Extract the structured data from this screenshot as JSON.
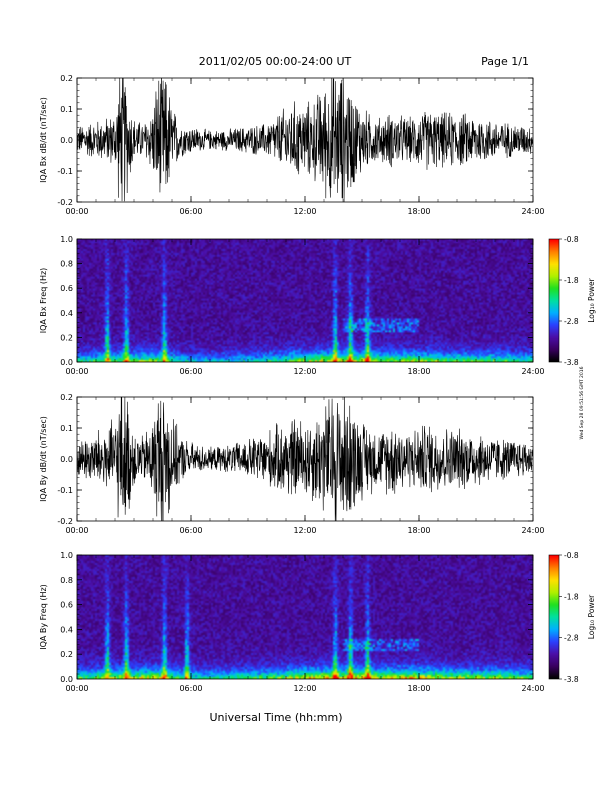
{
  "header": {
    "title": "2011/02/05  00:00-24:00 UT",
    "page": "Page 1/1"
  },
  "footer": {
    "xlabel": "Universal Time (hh:mm)"
  },
  "side_note": "Wed Sep 28 09:51:56 GMT 2016",
  "colors": {
    "trace": "#000000",
    "colormap": [
      "#000000",
      "#3a0060",
      "#4b0fa8",
      "#2a40ff",
      "#00b0ff",
      "#00e0a0",
      "#20e020",
      "#b0f000",
      "#ffe000",
      "#ff8000",
      "#ff0000"
    ]
  },
  "chart_data": [
    {
      "type": "line",
      "title": "",
      "ylabel": "IQA Bx dB/dt (nT/sec)",
      "xlabel": "",
      "x_range_hours": [
        0,
        24
      ],
      "x_tick_labels": [
        "00:00",
        "06:00",
        "12:00",
        "18:00",
        "24:00"
      ],
      "ylim": [
        -0.2,
        0.2
      ],
      "y_tick_labels": [
        "0.2",
        "0.1",
        "0.0",
        "-0.1",
        "-0.2"
      ],
      "y_ticks": [
        0.2,
        0.1,
        0.0,
        -0.1,
        -0.2
      ],
      "envelope": {
        "hours": [
          0,
          0.5,
          1,
          1.5,
          2,
          2.25,
          2.5,
          2.75,
          3,
          3.5,
          4,
          4.25,
          4.5,
          4.75,
          5,
          5.5,
          6,
          6.5,
          7,
          8,
          9,
          10,
          10.5,
          11,
          11.5,
          12,
          12.5,
          13,
          13.5,
          14,
          14.5,
          15,
          15.5,
          16,
          16.5,
          17,
          17.5,
          18,
          18.5,
          19,
          20,
          21,
          22,
          23,
          24
        ],
        "amplitude": [
          0.05,
          0.06,
          0.07,
          0.08,
          0.1,
          0.25,
          0.25,
          0.15,
          0.08,
          0.06,
          0.12,
          0.25,
          0.25,
          0.22,
          0.12,
          0.06,
          0.05,
          0.04,
          0.035,
          0.04,
          0.05,
          0.06,
          0.09,
          0.12,
          0.14,
          0.13,
          0.15,
          0.2,
          0.25,
          0.25,
          0.18,
          0.12,
          0.09,
          0.08,
          0.1,
          0.09,
          0.08,
          0.1,
          0.11,
          0.1,
          0.1,
          0.09,
          0.07,
          0.06,
          0.05
        ]
      }
    },
    {
      "type": "heatmap",
      "title": "",
      "ylabel": "IQA Bx Freq (Hz)",
      "xlabel": "",
      "x_range_hours": [
        0,
        24
      ],
      "x_tick_labels": [
        "00:00",
        "06:00",
        "12:00",
        "18:00",
        "24:00"
      ],
      "ylim": [
        0.0,
        1.0
      ],
      "y_tick_labels": [
        "1.0",
        "0.8",
        "0.6",
        "0.4",
        "0.2",
        "0.0"
      ],
      "y_ticks": [
        1.0,
        0.8,
        0.6,
        0.4,
        0.2,
        0.0
      ],
      "colorbar": {
        "label": "Log₁₀ Power",
        "range": [
          -3.8,
          -0.8
        ],
        "tick_labels": [
          "-0.8",
          "-1.8",
          "-2.8",
          "-3.8"
        ],
        "ticks": [
          -0.8,
          -1.8,
          -2.8,
          -3.8
        ]
      },
      "features": {
        "vertical_bursts_hours": [
          1.6,
          2.6,
          4.6,
          13.6,
          14.4,
          15.3
        ],
        "pc1_band": {
          "start_hour": 14.0,
          "end_hour": 18.0,
          "freq_hz": [
            0.25,
            0.35
          ]
        },
        "low_freq_intensity_hours": [
          0,
          2,
          4,
          6,
          8,
          10,
          12,
          14,
          16,
          18,
          20,
          22,
          24
        ],
        "low_freq_intensity": [
          0.4,
          0.5,
          0.6,
          0.3,
          0.3,
          0.4,
          0.6,
          0.7,
          0.6,
          0.6,
          0.5,
          0.5,
          0.4
        ]
      }
    },
    {
      "type": "line",
      "title": "",
      "ylabel": "IQA By dB/dt (nT/sec)",
      "xlabel": "",
      "x_range_hours": [
        0,
        24
      ],
      "x_tick_labels": [
        "00:00",
        "06:00",
        "12:00",
        "18:00",
        "24:00"
      ],
      "ylim": [
        -0.2,
        0.2
      ],
      "y_tick_labels": [
        "0.2",
        "0.1",
        "0.0",
        "-0.1",
        "-0.2"
      ],
      "y_ticks": [
        0.2,
        0.1,
        0.0,
        -0.1,
        -0.2
      ],
      "envelope": {
        "hours": [
          0,
          0.5,
          1,
          1.5,
          2,
          2.25,
          2.5,
          2.75,
          3,
          3.5,
          4,
          4.25,
          4.5,
          4.75,
          5,
          5.5,
          6,
          6.5,
          7,
          8,
          9,
          10,
          10.5,
          11,
          11.5,
          12,
          12.5,
          13,
          13.5,
          14,
          14.5,
          15,
          15.5,
          16,
          16.5,
          17,
          17.5,
          18,
          18.5,
          19,
          20,
          21,
          22,
          23,
          24
        ],
        "amplitude": [
          0.06,
          0.08,
          0.1,
          0.12,
          0.14,
          0.25,
          0.25,
          0.2,
          0.1,
          0.08,
          0.15,
          0.25,
          0.25,
          0.25,
          0.15,
          0.08,
          0.06,
          0.05,
          0.04,
          0.05,
          0.07,
          0.1,
          0.12,
          0.14,
          0.15,
          0.14,
          0.16,
          0.2,
          0.25,
          0.25,
          0.2,
          0.14,
          0.12,
          0.1,
          0.14,
          0.12,
          0.1,
          0.12,
          0.13,
          0.12,
          0.11,
          0.1,
          0.08,
          0.07,
          0.06
        ]
      }
    },
    {
      "type": "heatmap",
      "title": "",
      "ylabel": "IQA By Freq (Hz)",
      "xlabel": "Universal Time (hh:mm)",
      "x_range_hours": [
        0,
        24
      ],
      "x_tick_labels": [
        "00:00",
        "06:00",
        "12:00",
        "18:00",
        "24:00"
      ],
      "ylim": [
        0.0,
        1.0
      ],
      "y_tick_labels": [
        "1.0",
        "0.8",
        "0.6",
        "0.4",
        "0.2",
        "0.0"
      ],
      "y_ticks": [
        1.0,
        0.8,
        0.6,
        0.4,
        0.2,
        0.0
      ],
      "colorbar": {
        "label": "Log₁₀ Power",
        "range": [
          -3.8,
          -0.8
        ],
        "tick_labels": [
          "-0.8",
          "-1.8",
          "-2.8",
          "-3.8"
        ],
        "ticks": [
          -0.8,
          -1.8,
          -2.8,
          -3.8
        ]
      },
      "features": {
        "vertical_bursts_hours": [
          1.6,
          2.6,
          4.6,
          5.8,
          13.6,
          14.4,
          15.3
        ],
        "pc1_band": {
          "start_hour": 14.0,
          "end_hour": 18.0,
          "freq_hz": [
            0.22,
            0.32
          ]
        },
        "low_freq_intensity_hours": [
          0,
          2,
          4,
          6,
          8,
          10,
          12,
          14,
          16,
          18,
          20,
          22,
          24
        ],
        "low_freq_intensity": [
          0.5,
          0.6,
          0.7,
          0.4,
          0.4,
          0.5,
          0.7,
          0.8,
          0.7,
          0.7,
          0.6,
          0.6,
          0.5
        ]
      }
    }
  ]
}
